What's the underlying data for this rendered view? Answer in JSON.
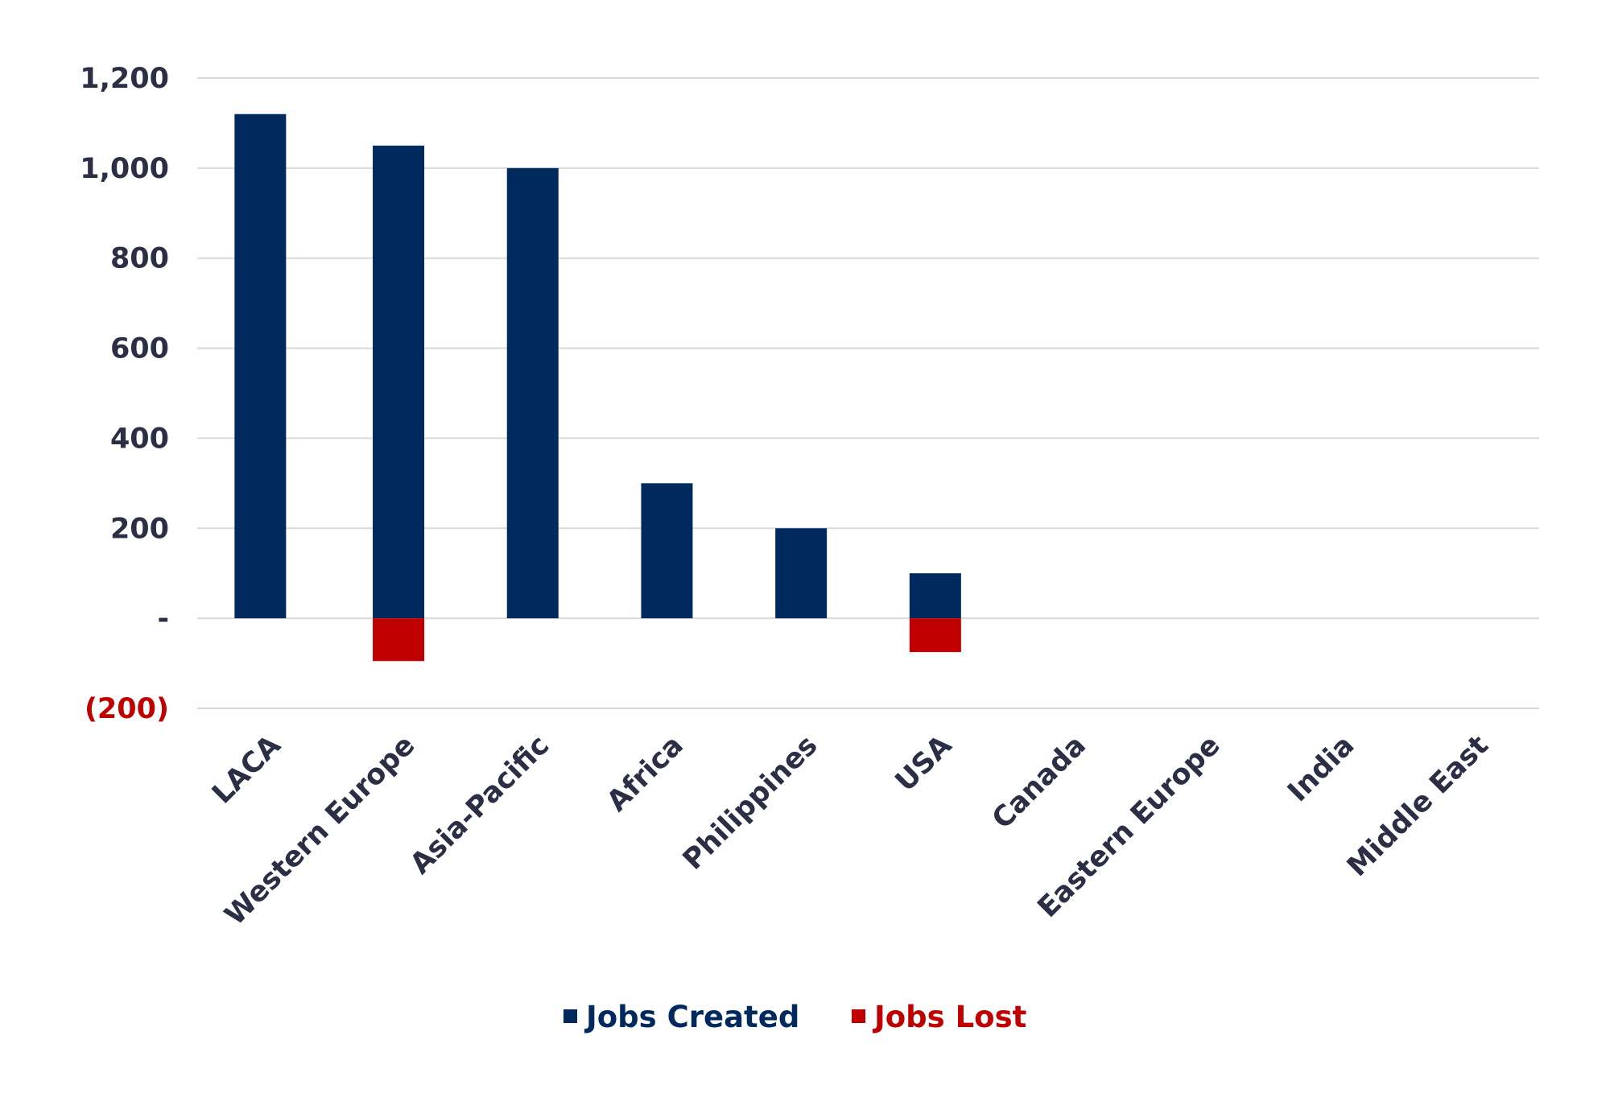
{
  "chart_data": {
    "type": "bar",
    "categories": [
      "LACA",
      "Western Europe",
      "Asia-Pacific",
      "Africa",
      "Philippines",
      "USA",
      "Canada",
      "Eastern Europe",
      "India",
      "Middle East"
    ],
    "series": [
      {
        "name": "Jobs Created",
        "color": "#002a5e",
        "values": [
          1120,
          1050,
          1000,
          300,
          200,
          100,
          0,
          0,
          0,
          0
        ]
      },
      {
        "name": "Jobs Lost",
        "color": "#c00000",
        "values": [
          0,
          -95,
          0,
          0,
          0,
          -75,
          0,
          0,
          0,
          0
        ]
      }
    ],
    "ylim": [
      -200,
      1200
    ],
    "yticks": [
      {
        "value": 1200,
        "label": "1,200"
      },
      {
        "value": 1000,
        "label": "1,000"
      },
      {
        "value": 800,
        "label": "800"
      },
      {
        "value": 600,
        "label": "600"
      },
      {
        "value": 400,
        "label": "400"
      },
      {
        "value": 200,
        "label": "200"
      },
      {
        "value": 0,
        "label": "-"
      },
      {
        "value": -200,
        "label": "(200)"
      }
    ],
    "grid": true,
    "legend": "bottom-center",
    "title": "",
    "xlabel": "",
    "ylabel": ""
  }
}
